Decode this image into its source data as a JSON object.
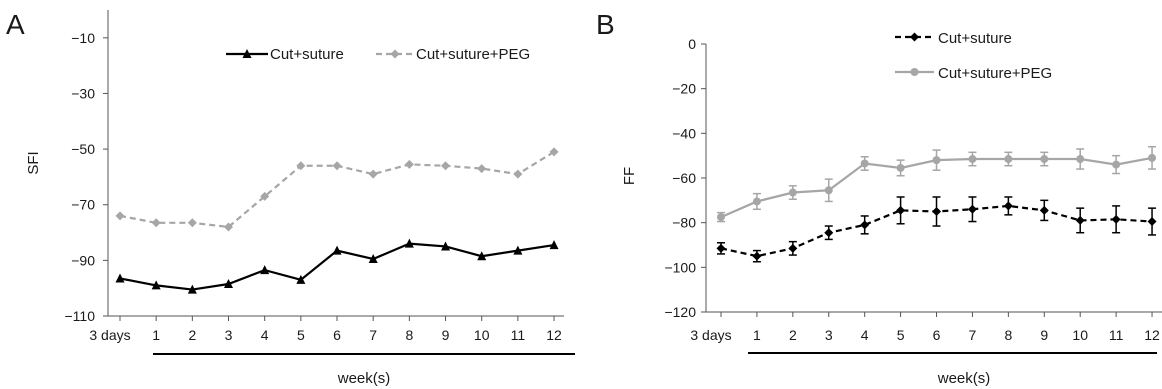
{
  "panels": {
    "a": {
      "letter": "A"
    },
    "b": {
      "letter": "B"
    }
  },
  "chart_data": [
    {
      "type": "line",
      "panel_label": "A",
      "categories": [
        "3 days",
        "1",
        "2",
        "3",
        "4",
        "5",
        "6",
        "7",
        "8",
        "9",
        "10",
        "11",
        "12"
      ],
      "ylabel": "SFI",
      "xlabel": "week(s)",
      "ylim": [
        -110,
        0
      ],
      "yticks": [
        -110,
        -90,
        -70,
        -50,
        -30,
        -10
      ],
      "grid": false,
      "legend_position": "top-right",
      "series": [
        {
          "name": "Cut+suture",
          "color": "#000000",
          "line_style": "solid",
          "marker": "triangle",
          "values": [
            -96.5,
            -99,
            -100.5,
            -98.5,
            -93.5,
            -97,
            -86.5,
            -89.5,
            -84,
            -85,
            -88.5,
            -86.5,
            -84.5
          ]
        },
        {
          "name": "Cut+suture+PEG",
          "color": "#a6a6a6",
          "line_style": "dashed",
          "marker": "diamond",
          "values": [
            -74,
            -76.5,
            -76.5,
            -78,
            -67,
            -56,
            -56,
            -59,
            -55.5,
            -56,
            -57,
            -59,
            -51
          ]
        }
      ]
    },
    {
      "type": "line",
      "panel_label": "B",
      "categories": [
        "3 days",
        "1",
        "2",
        "3",
        "4",
        "5",
        "6",
        "7",
        "8",
        "9",
        "10",
        "11",
        "12"
      ],
      "ylabel": "FF",
      "xlabel": "week(s)",
      "ylim": [
        -120,
        0
      ],
      "yticks": [
        -120,
        -100,
        -80,
        -60,
        -40,
        -20,
        0
      ],
      "grid": false,
      "legend_position": "top-left",
      "error_bars": true,
      "series": [
        {
          "name": "Cut+suture",
          "color": "#000000",
          "line_style": "dashed",
          "marker": "diamond",
          "values": [
            -91.5,
            -95,
            -91.5,
            -84.5,
            -81,
            -74.5,
            -75,
            -74,
            -72.5,
            -74.5,
            -79,
            -78.5,
            -79.5
          ],
          "errors": [
            2.5,
            2.5,
            3,
            3,
            4,
            6,
            6.5,
            5.5,
            4,
            4.5,
            5.5,
            6,
            6
          ]
        },
        {
          "name": "Cut+suture+PEG",
          "color": "#a6a6a6",
          "line_style": "solid",
          "marker": "circle",
          "values": [
            -77.5,
            -70.5,
            -66.5,
            -65.5,
            -53.5,
            -55.5,
            -52,
            -51.5,
            -51.5,
            -51.5,
            -51.5,
            -54,
            -51
          ],
          "errors": [
            2,
            3.5,
            3,
            5,
            3,
            3.5,
            4.5,
            3,
            3,
            3,
            4.5,
            4,
            5
          ]
        }
      ]
    }
  ]
}
